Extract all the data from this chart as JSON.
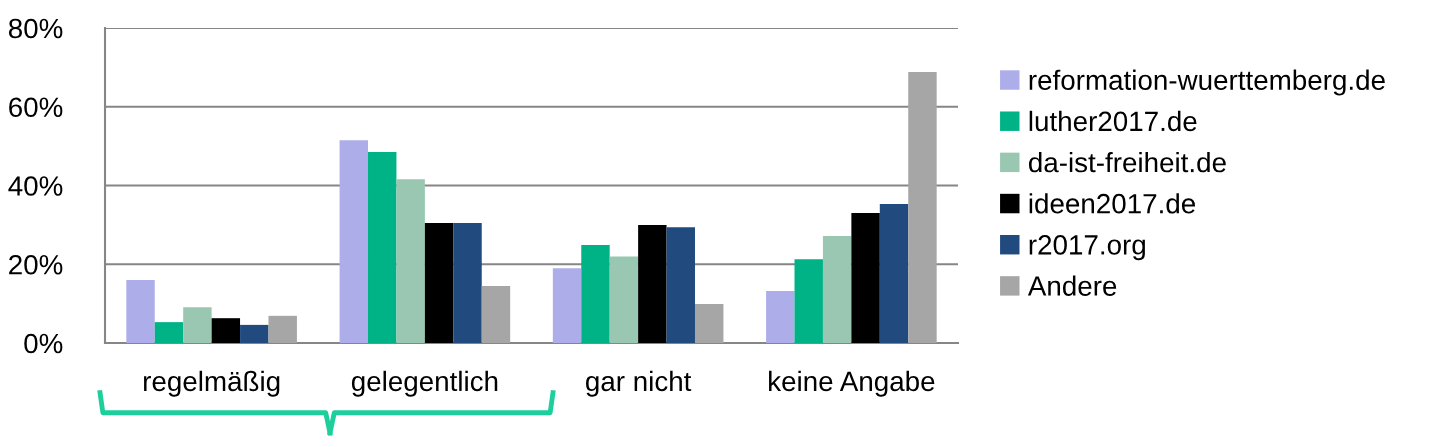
{
  "chart_data": {
    "type": "bar",
    "categories": [
      "regelmäßig",
      "gelegentlich",
      "gar nicht",
      "keine Angabe"
    ],
    "series": [
      {
        "name": "reformation-wuerttemberg.de",
        "color": "#adaee9",
        "values": [
          16,
          51.5,
          19,
          13.2
        ]
      },
      {
        "name": "luther2017.de",
        "color": "#00b386",
        "values": [
          5.3,
          48.5,
          24.9,
          21.3
        ]
      },
      {
        "name": "da-ist-freiheit.de",
        "color": "#99c7b1",
        "values": [
          9.1,
          41.6,
          22,
          27.2
        ]
      },
      {
        "name": "ideen2017.de",
        "color": "#000000",
        "values": [
          6.3,
          30.5,
          30,
          33
        ]
      },
      {
        "name": "r2017.org",
        "color": "#214a7e",
        "values": [
          4.6,
          30.5,
          29.4,
          35.3
        ]
      },
      {
        "name": "Andere",
        "color": "#a6a6a6",
        "values": [
          6.9,
          14.5,
          9.9,
          68.8
        ]
      }
    ],
    "ylim": [
      0,
      80
    ],
    "yticks": [
      {
        "value": 0,
        "label": "0%"
      },
      {
        "value": 20,
        "label": "20%"
      },
      {
        "value": 40,
        "label": "40%"
      },
      {
        "value": 60,
        "label": "60%"
      },
      {
        "value": 80,
        "label": "80%"
      }
    ],
    "grid": "y",
    "legend": "right"
  }
}
